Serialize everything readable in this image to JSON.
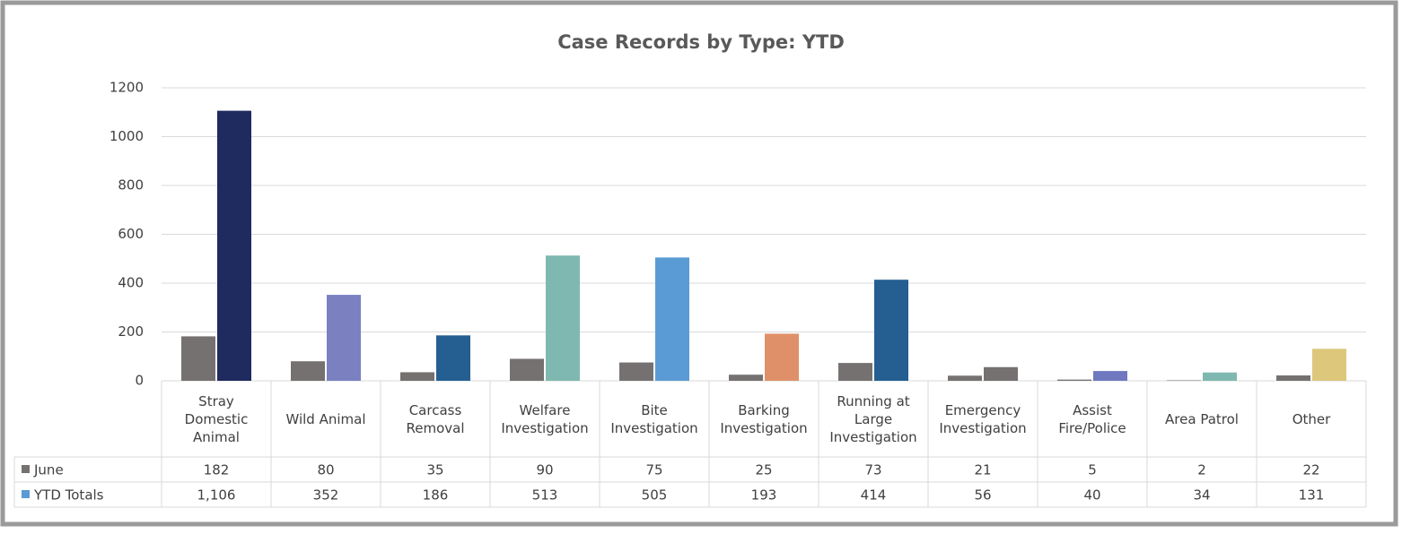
{
  "chart_data": {
    "type": "bar",
    "title": "Case Records by Type: YTD",
    "categories": [
      "Stray Domestic Animal",
      "Wild Animal",
      "Carcass Removal",
      "Welfare Investigation",
      "Bite Investigation",
      "Barking Investigation",
      "Running at Large Investigation",
      "Emergency Investigation",
      "Assist Fire/Police",
      "Area Patrol",
      "Other"
    ],
    "series": [
      {
        "name": "June",
        "color": "#767171",
        "values": [
          182,
          80,
          35,
          90,
          75,
          25,
          73,
          21,
          5,
          2,
          22
        ]
      },
      {
        "name": "YTD Totals",
        "color": "#5b9bd5",
        "colors": [
          "#1f2a5e",
          "#7a80c0",
          "#255e91",
          "#7fb8b0",
          "#5b9bd5",
          "#e09068",
          "#255e91",
          "#767171",
          "#6f79c0",
          "#7fb8b0",
          "#dcc77a"
        ],
        "values": [
          1106,
          352,
          186,
          513,
          505,
          193,
          414,
          56,
          40,
          34,
          131
        ],
        "value_labels": [
          "1,106",
          "352",
          "186",
          "513",
          "505",
          "193",
          "414",
          "56",
          "40",
          "34",
          "131"
        ]
      }
    ],
    "ylim": [
      0,
      1200
    ],
    "yticks": [
      0,
      200,
      400,
      600,
      800,
      1000,
      1200
    ],
    "grid": true
  }
}
